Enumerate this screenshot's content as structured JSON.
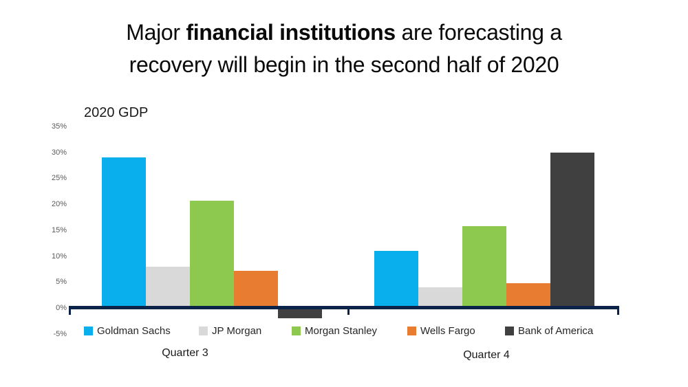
{
  "title": {
    "prefix": "Major ",
    "emphasis": "financial institutions",
    "suffix": " are forecasting a",
    "line2": "recovery will begin in the second half of 2020"
  },
  "chart_data": {
    "type": "bar",
    "title": "2020 GDP",
    "categories": [
      "Quarter 3",
      "Quarter 4"
    ],
    "series": [
      {
        "name": "Goldman Sachs",
        "color": "#09AEEC",
        "values": [
          29,
          11
        ]
      },
      {
        "name": "JP Morgan",
        "color": "#D9D9D9",
        "values": [
          8,
          4
        ]
      },
      {
        "name": "Morgan Stanley",
        "color": "#8CC94E",
        "values": [
          20.7,
          15.8
        ]
      },
      {
        "name": "Wells Fargo",
        "color": "#E87D31",
        "values": [
          7.2,
          4.8
        ]
      },
      {
        "name": "Bank of America",
        "color": "#404040",
        "values": [
          -2,
          30
        ]
      }
    ],
    "y_ticks": [
      "35%",
      "30%",
      "25%",
      "20%",
      "15%",
      "10%",
      "5%",
      "0%",
      "-5%"
    ],
    "y_tick_values": [
      35,
      30,
      25,
      20,
      15,
      10,
      5,
      0,
      -5
    ],
    "ylim": [
      -5,
      35
    ],
    "unit": "%",
    "grid": false,
    "legend_position": "bottom",
    "axis_color": "#0C2349",
    "text_color": "#595959"
  }
}
